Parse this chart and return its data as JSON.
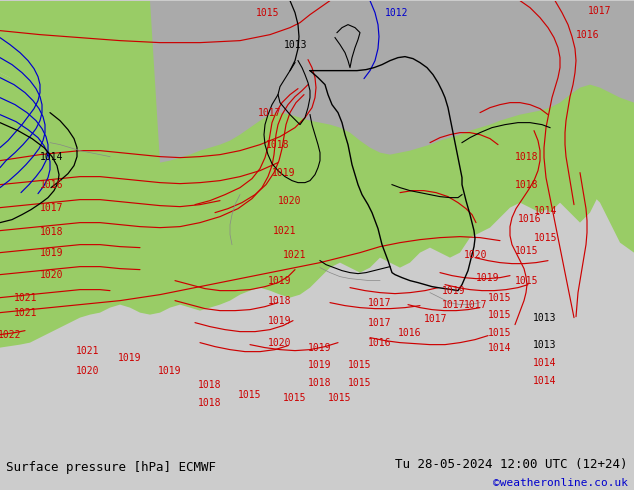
{
  "title_left": "Surface pressure [hPa] ECMWF",
  "title_right": "Tu 28-05-2024 12:00 UTC (12+24)",
  "credit": "©weatheronline.co.uk",
  "credit_color": "#0000cc",
  "fig_width": 6.34,
  "fig_height": 4.9,
  "dpi": 100,
  "text_color": "#000000",
  "font_size_title": 9,
  "font_size_credit": 8,
  "red_color": "#cc0000",
  "blue_color": "#0000cc",
  "black_color": "#000000",
  "gray_color": "#888888",
  "green_land": "#99cc66",
  "gray_sea": "#aaaaaa",
  "bar_color": "#cccccc",
  "border_color": "#555555"
}
